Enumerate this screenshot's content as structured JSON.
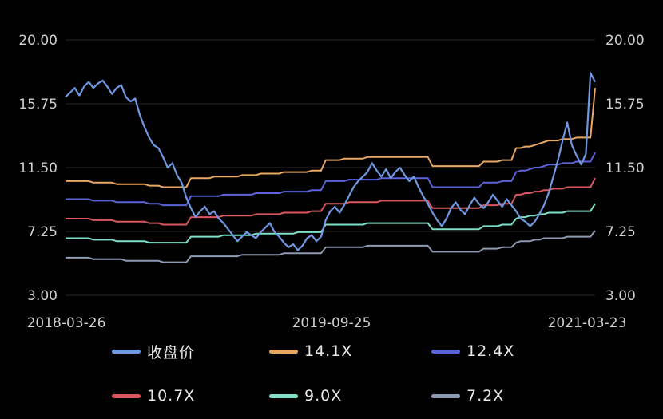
{
  "chart_data": {
    "type": "line",
    "x_tick_labels": [
      "2018-03-26",
      "2019-09-25",
      "2021-03-23"
    ],
    "y_ticks_left": [
      "20.00",
      "15.75",
      "11.50",
      "7.25",
      "3.00"
    ],
    "y_ticks_right": [
      "20.00",
      "15.75",
      "11.50",
      "7.25",
      "3.00"
    ],
    "ylim": [
      3.0,
      20.0
    ],
    "grid": true,
    "legend_position": "bottom",
    "series": [
      {
        "name": "收盘价",
        "color": "#6f98e0",
        "values": [
          16.2,
          16.5,
          16.8,
          16.3,
          16.9,
          17.2,
          16.8,
          17.1,
          17.3,
          16.9,
          16.4,
          16.8,
          17.0,
          16.2,
          15.9,
          16.1,
          15.0,
          14.2,
          13.5,
          13.0,
          12.8,
          12.2,
          11.5,
          11.8,
          11.0,
          10.5,
          9.5,
          8.8,
          8.2,
          8.6,
          8.9,
          8.4,
          8.6,
          8.1,
          7.8,
          7.4,
          7.0,
          6.6,
          6.9,
          7.2,
          7.0,
          6.8,
          7.2,
          7.5,
          7.8,
          7.2,
          6.9,
          6.5,
          6.2,
          6.4,
          6.0,
          6.3,
          6.8,
          7.0,
          6.6,
          6.9,
          8.0,
          8.6,
          8.9,
          8.5,
          9.0,
          9.6,
          10.2,
          10.6,
          10.9,
          11.2,
          11.8,
          11.3,
          10.9,
          11.4,
          10.8,
          11.2,
          11.5,
          11.0,
          10.6,
          10.9,
          10.2,
          9.6,
          9.1,
          8.5,
          8.0,
          7.6,
          8.1,
          8.8,
          9.2,
          8.7,
          8.4,
          9.0,
          9.5,
          9.1,
          8.8,
          9.2,
          9.7,
          9.3,
          8.9,
          9.4,
          9.0,
          8.6,
          8.1,
          7.9,
          7.6,
          7.9,
          8.4,
          9.0,
          9.8,
          10.9,
          12.0,
          13.3,
          14.5,
          13.0,
          12.3,
          11.7,
          12.4,
          17.8,
          17.2
        ]
      },
      {
        "name": "14.1X",
        "color": "#e8a863",
        "values": [
          10.6,
          10.6,
          10.6,
          10.6,
          10.6,
          10.6,
          10.5,
          10.5,
          10.5,
          10.5,
          10.5,
          10.4,
          10.4,
          10.4,
          10.4,
          10.4,
          10.4,
          10.4,
          10.3,
          10.3,
          10.3,
          10.2,
          10.2,
          10.2,
          10.2,
          10.2,
          10.2,
          10.8,
          10.8,
          10.8,
          10.8,
          10.8,
          10.9,
          10.9,
          10.9,
          10.9,
          10.9,
          10.9,
          11.0,
          11.0,
          11.0,
          11.0,
          11.1,
          11.1,
          11.1,
          11.1,
          11.1,
          11.2,
          11.2,
          11.2,
          11.2,
          11.2,
          11.2,
          11.3,
          11.3,
          11.3,
          12.0,
          12.0,
          12.0,
          12.0,
          12.1,
          12.1,
          12.1,
          12.1,
          12.1,
          12.2,
          12.2,
          12.2,
          12.2,
          12.2,
          12.2,
          12.2,
          12.2,
          12.2,
          12.2,
          12.2,
          12.2,
          12.2,
          12.2,
          11.6,
          11.6,
          11.6,
          11.6,
          11.6,
          11.6,
          11.6,
          11.6,
          11.6,
          11.6,
          11.6,
          11.9,
          11.9,
          11.9,
          11.9,
          12.0,
          12.0,
          12.0,
          12.8,
          12.8,
          12.9,
          12.9,
          13.0,
          13.1,
          13.2,
          13.3,
          13.3,
          13.3,
          13.4,
          13.4,
          13.4,
          13.5,
          13.5,
          13.5,
          13.5,
          16.8
        ]
      },
      {
        "name": "12.4X",
        "color": "#5b63d9",
        "values": [
          9.4,
          9.4,
          9.4,
          9.4,
          9.4,
          9.4,
          9.3,
          9.3,
          9.3,
          9.3,
          9.3,
          9.2,
          9.2,
          9.2,
          9.2,
          9.2,
          9.2,
          9.2,
          9.1,
          9.1,
          9.1,
          9.0,
          9.0,
          9.0,
          9.0,
          9.0,
          9.0,
          9.6,
          9.6,
          9.6,
          9.6,
          9.6,
          9.6,
          9.6,
          9.7,
          9.7,
          9.7,
          9.7,
          9.7,
          9.7,
          9.7,
          9.8,
          9.8,
          9.8,
          9.8,
          9.8,
          9.8,
          9.9,
          9.9,
          9.9,
          9.9,
          9.9,
          9.9,
          10.0,
          10.0,
          10.0,
          10.6,
          10.6,
          10.6,
          10.6,
          10.6,
          10.7,
          10.7,
          10.7,
          10.7,
          10.7,
          10.7,
          10.7,
          10.8,
          10.8,
          10.8,
          10.8,
          10.8,
          10.8,
          10.8,
          10.8,
          10.8,
          10.8,
          10.8,
          10.2,
          10.2,
          10.2,
          10.2,
          10.2,
          10.2,
          10.2,
          10.2,
          10.2,
          10.2,
          10.2,
          10.5,
          10.5,
          10.5,
          10.5,
          10.6,
          10.6,
          10.6,
          11.2,
          11.3,
          11.3,
          11.4,
          11.5,
          11.5,
          11.6,
          11.7,
          11.7,
          11.7,
          11.8,
          11.8,
          11.8,
          11.9,
          11.9,
          11.9,
          11.9,
          12.5
        ]
      },
      {
        "name": "10.7X",
        "color": "#d9575d",
        "values": [
          8.1,
          8.1,
          8.1,
          8.1,
          8.1,
          8.1,
          8.0,
          8.0,
          8.0,
          8.0,
          8.0,
          7.9,
          7.9,
          7.9,
          7.9,
          7.9,
          7.9,
          7.9,
          7.8,
          7.8,
          7.8,
          7.7,
          7.7,
          7.7,
          7.7,
          7.7,
          7.7,
          8.2,
          8.2,
          8.2,
          8.2,
          8.2,
          8.2,
          8.2,
          8.3,
          8.3,
          8.3,
          8.3,
          8.3,
          8.3,
          8.3,
          8.4,
          8.4,
          8.4,
          8.4,
          8.4,
          8.4,
          8.5,
          8.5,
          8.5,
          8.5,
          8.5,
          8.5,
          8.6,
          8.6,
          8.6,
          9.1,
          9.1,
          9.1,
          9.1,
          9.1,
          9.2,
          9.2,
          9.2,
          9.2,
          9.2,
          9.2,
          9.2,
          9.3,
          9.3,
          9.3,
          9.3,
          9.3,
          9.3,
          9.3,
          9.3,
          9.3,
          9.3,
          9.3,
          8.8,
          8.8,
          8.8,
          8.8,
          8.8,
          8.8,
          8.8,
          8.8,
          8.8,
          8.8,
          8.8,
          9.0,
          9.0,
          9.0,
          9.0,
          9.1,
          9.1,
          9.1,
          9.7,
          9.7,
          9.8,
          9.8,
          9.9,
          9.9,
          10.0,
          10.0,
          10.1,
          10.1,
          10.1,
          10.2,
          10.2,
          10.2,
          10.2,
          10.2,
          10.2,
          10.8
        ]
      },
      {
        "name": "9.0X",
        "color": "#7fe0c8",
        "values": [
          6.8,
          6.8,
          6.8,
          6.8,
          6.8,
          6.8,
          6.7,
          6.7,
          6.7,
          6.7,
          6.7,
          6.6,
          6.6,
          6.6,
          6.6,
          6.6,
          6.6,
          6.6,
          6.5,
          6.5,
          6.5,
          6.5,
          6.5,
          6.5,
          6.5,
          6.5,
          6.5,
          6.9,
          6.9,
          6.9,
          6.9,
          6.9,
          6.9,
          6.9,
          7.0,
          7.0,
          7.0,
          7.0,
          7.0,
          7.0,
          7.0,
          7.1,
          7.1,
          7.1,
          7.1,
          7.1,
          7.1,
          7.1,
          7.1,
          7.1,
          7.2,
          7.2,
          7.2,
          7.2,
          7.2,
          7.2,
          7.7,
          7.7,
          7.7,
          7.7,
          7.7,
          7.7,
          7.7,
          7.7,
          7.7,
          7.8,
          7.8,
          7.8,
          7.8,
          7.8,
          7.8,
          7.8,
          7.8,
          7.8,
          7.8,
          7.8,
          7.8,
          7.8,
          7.8,
          7.4,
          7.4,
          7.4,
          7.4,
          7.4,
          7.4,
          7.4,
          7.4,
          7.4,
          7.4,
          7.4,
          7.6,
          7.6,
          7.6,
          7.6,
          7.7,
          7.7,
          7.7,
          8.1,
          8.2,
          8.2,
          8.3,
          8.3,
          8.4,
          8.4,
          8.5,
          8.5,
          8.5,
          8.5,
          8.6,
          8.6,
          8.6,
          8.6,
          8.6,
          8.6,
          9.1
        ]
      },
      {
        "name": "7.2X",
        "color": "#8e9bb3",
        "values": [
          5.5,
          5.5,
          5.5,
          5.5,
          5.5,
          5.5,
          5.4,
          5.4,
          5.4,
          5.4,
          5.4,
          5.4,
          5.4,
          5.3,
          5.3,
          5.3,
          5.3,
          5.3,
          5.3,
          5.3,
          5.3,
          5.2,
          5.2,
          5.2,
          5.2,
          5.2,
          5.2,
          5.6,
          5.6,
          5.6,
          5.6,
          5.6,
          5.6,
          5.6,
          5.6,
          5.6,
          5.6,
          5.6,
          5.7,
          5.7,
          5.7,
          5.7,
          5.7,
          5.7,
          5.7,
          5.7,
          5.7,
          5.8,
          5.8,
          5.8,
          5.8,
          5.8,
          5.8,
          5.8,
          5.8,
          5.8,
          6.2,
          6.2,
          6.2,
          6.2,
          6.2,
          6.2,
          6.2,
          6.2,
          6.2,
          6.3,
          6.3,
          6.3,
          6.3,
          6.3,
          6.3,
          6.3,
          6.3,
          6.3,
          6.3,
          6.3,
          6.3,
          6.3,
          6.3,
          5.9,
          5.9,
          5.9,
          5.9,
          5.9,
          5.9,
          5.9,
          5.9,
          5.9,
          5.9,
          5.9,
          6.1,
          6.1,
          6.1,
          6.1,
          6.2,
          6.2,
          6.2,
          6.5,
          6.6,
          6.6,
          6.6,
          6.7,
          6.7,
          6.8,
          6.8,
          6.8,
          6.8,
          6.8,
          6.9,
          6.9,
          6.9,
          6.9,
          6.9,
          6.9,
          7.3
        ]
      }
    ]
  }
}
